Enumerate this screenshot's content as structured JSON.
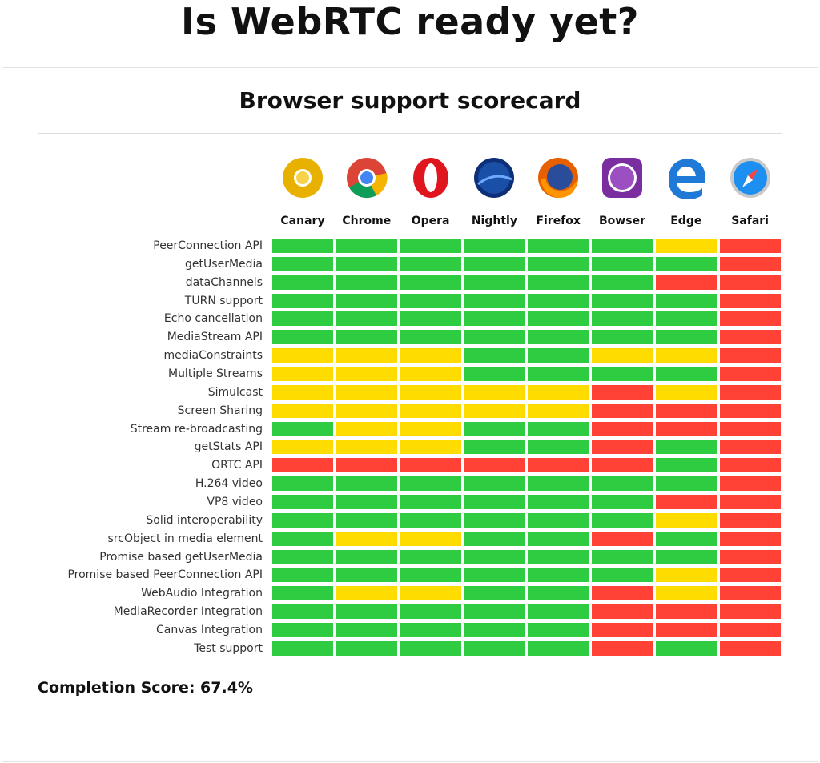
{
  "title": "Is WebRTC ready yet?",
  "chart_data": {
    "type": "heatmap",
    "title": "Browser support scorecard",
    "columns": [
      "Canary",
      "Chrome",
      "Opera",
      "Nightly",
      "Firefox",
      "Bowser",
      "Edge",
      "Safari"
    ],
    "column_icons": [
      "chrome-canary-icon",
      "chrome-icon",
      "opera-icon",
      "firefox-nightly-icon",
      "firefox-icon",
      "bowser-icon",
      "edge-icon",
      "safari-icon"
    ],
    "rows": [
      "PeerConnection API",
      "getUserMedia",
      "dataChannels",
      "TURN support",
      "Echo cancellation",
      "MediaStream API",
      "mediaConstraints",
      "Multiple Streams",
      "Simulcast",
      "Screen Sharing",
      "Stream re-broadcasting",
      "getStats API",
      "ORTC API",
      "H.264 video",
      "VP8 video",
      "Solid interoperability",
      "srcObject in media element",
      "Promise based getUserMedia",
      "Promise based PeerConnection API",
      "WebAudio Integration",
      "MediaRecorder Integration",
      "Canvas Integration",
      "Test support"
    ],
    "status_colors": {
      "supported": "#2ecc40",
      "partial": "#ffdc00",
      "unsupported": "#ff4136"
    },
    "values": [
      [
        "G",
        "G",
        "G",
        "G",
        "G",
        "G",
        "Y",
        "R"
      ],
      [
        "G",
        "G",
        "G",
        "G",
        "G",
        "G",
        "G",
        "R"
      ],
      [
        "G",
        "G",
        "G",
        "G",
        "G",
        "G",
        "R",
        "R"
      ],
      [
        "G",
        "G",
        "G",
        "G",
        "G",
        "G",
        "G",
        "R"
      ],
      [
        "G",
        "G",
        "G",
        "G",
        "G",
        "G",
        "G",
        "R"
      ],
      [
        "G",
        "G",
        "G",
        "G",
        "G",
        "G",
        "G",
        "R"
      ],
      [
        "Y",
        "Y",
        "Y",
        "G",
        "G",
        "Y",
        "Y",
        "R"
      ],
      [
        "Y",
        "Y",
        "Y",
        "G",
        "G",
        "G",
        "G",
        "R"
      ],
      [
        "Y",
        "Y",
        "Y",
        "Y",
        "Y",
        "R",
        "Y",
        "R"
      ],
      [
        "Y",
        "Y",
        "Y",
        "Y",
        "Y",
        "R",
        "R",
        "R"
      ],
      [
        "G",
        "Y",
        "Y",
        "G",
        "G",
        "R",
        "R",
        "R"
      ],
      [
        "Y",
        "Y",
        "Y",
        "G",
        "G",
        "R",
        "G",
        "R"
      ],
      [
        "R",
        "R",
        "R",
        "R",
        "R",
        "R",
        "G",
        "R"
      ],
      [
        "G",
        "G",
        "G",
        "G",
        "G",
        "G",
        "G",
        "R"
      ],
      [
        "G",
        "G",
        "G",
        "G",
        "G",
        "G",
        "R",
        "R"
      ],
      [
        "G",
        "G",
        "G",
        "G",
        "G",
        "G",
        "Y",
        "R"
      ],
      [
        "G",
        "Y",
        "Y",
        "G",
        "G",
        "R",
        "G",
        "R"
      ],
      [
        "G",
        "G",
        "G",
        "G",
        "G",
        "G",
        "G",
        "R"
      ],
      [
        "G",
        "G",
        "G",
        "G",
        "G",
        "G",
        "Y",
        "R"
      ],
      [
        "G",
        "Y",
        "Y",
        "G",
        "G",
        "R",
        "Y",
        "R"
      ],
      [
        "G",
        "G",
        "G",
        "G",
        "G",
        "R",
        "R",
        "R"
      ],
      [
        "G",
        "G",
        "G",
        "G",
        "G",
        "R",
        "R",
        "R"
      ],
      [
        "G",
        "G",
        "G",
        "G",
        "G",
        "R",
        "G",
        "R"
      ]
    ],
    "legend_codes": {
      "G": "supported",
      "Y": "partial",
      "R": "unsupported"
    }
  },
  "completion_score": "Completion Score: 67.4%"
}
